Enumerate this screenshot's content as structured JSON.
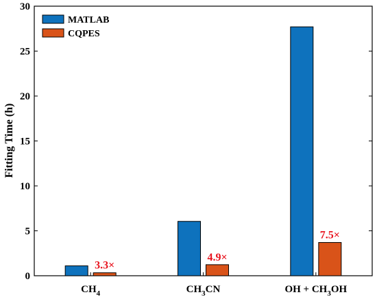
{
  "chart_data": {
    "type": "bar",
    "title": "",
    "xlabel": "",
    "ylabel": "Fitting Time (h)",
    "ylim": [
      0,
      30
    ],
    "yticks": [
      0,
      5,
      10,
      15,
      20,
      25,
      30
    ],
    "grid": false,
    "legend_position": "top-left",
    "categories": [
      {
        "base": "CH",
        "sub": "4",
        "tail": ""
      },
      {
        "base": "CH",
        "sub": "3",
        "tail": "CN"
      },
      {
        "base": "OH + CH",
        "sub": "3",
        "tail": "OH"
      }
    ],
    "series": [
      {
        "name": "MATLAB",
        "color": "#0e72bd",
        "values": [
          1.1,
          6.05,
          27.7
        ]
      },
      {
        "name": "CQPES",
        "color": "#d95319",
        "values": [
          0.33,
          1.23,
          3.7
        ]
      }
    ],
    "annotations": [
      "3.3×",
      "4.9×",
      "7.5×"
    ],
    "annotation_color": "#e8141f"
  }
}
